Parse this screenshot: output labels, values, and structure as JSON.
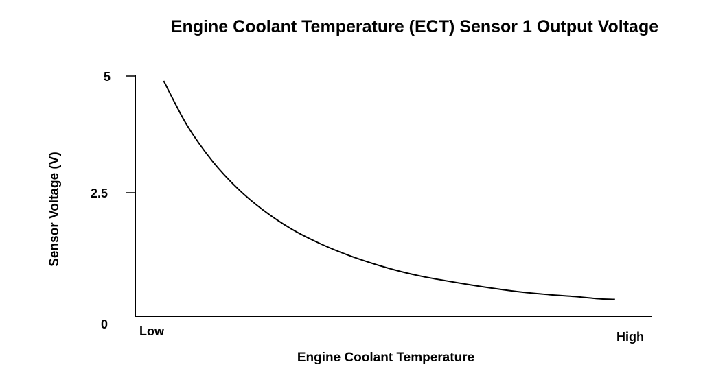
{
  "chart_data": {
    "type": "line",
    "title": "Engine Coolant Temperature (ECT) Sensor 1 Output Voltage",
    "xlabel": "Engine Coolant Temperature",
    "ylabel": "Sensor Voltage (V)",
    "x_ticks": [
      "Low",
      "High"
    ],
    "y_ticks": [
      "0",
      "2.5",
      "5"
    ],
    "ylim": [
      0,
      5
    ],
    "xlim": [
      0,
      1
    ],
    "grid": false,
    "legend": "none",
    "line_color": "#000000",
    "series": [
      {
        "x": [
          0.055,
          0.1,
          0.15,
          0.2,
          0.25,
          0.3,
          0.35,
          0.4,
          0.45,
          0.5,
          0.55,
          0.6,
          0.65,
          0.7,
          0.75,
          0.8,
          0.85,
          0.9,
          0.928
        ],
        "values": [
          4.9,
          3.98,
          3.22,
          2.64,
          2.19,
          1.83,
          1.55,
          1.32,
          1.13,
          0.97,
          0.84,
          0.74,
          0.65,
          0.57,
          0.5,
          0.45,
          0.41,
          0.36,
          0.35
        ]
      }
    ]
  }
}
